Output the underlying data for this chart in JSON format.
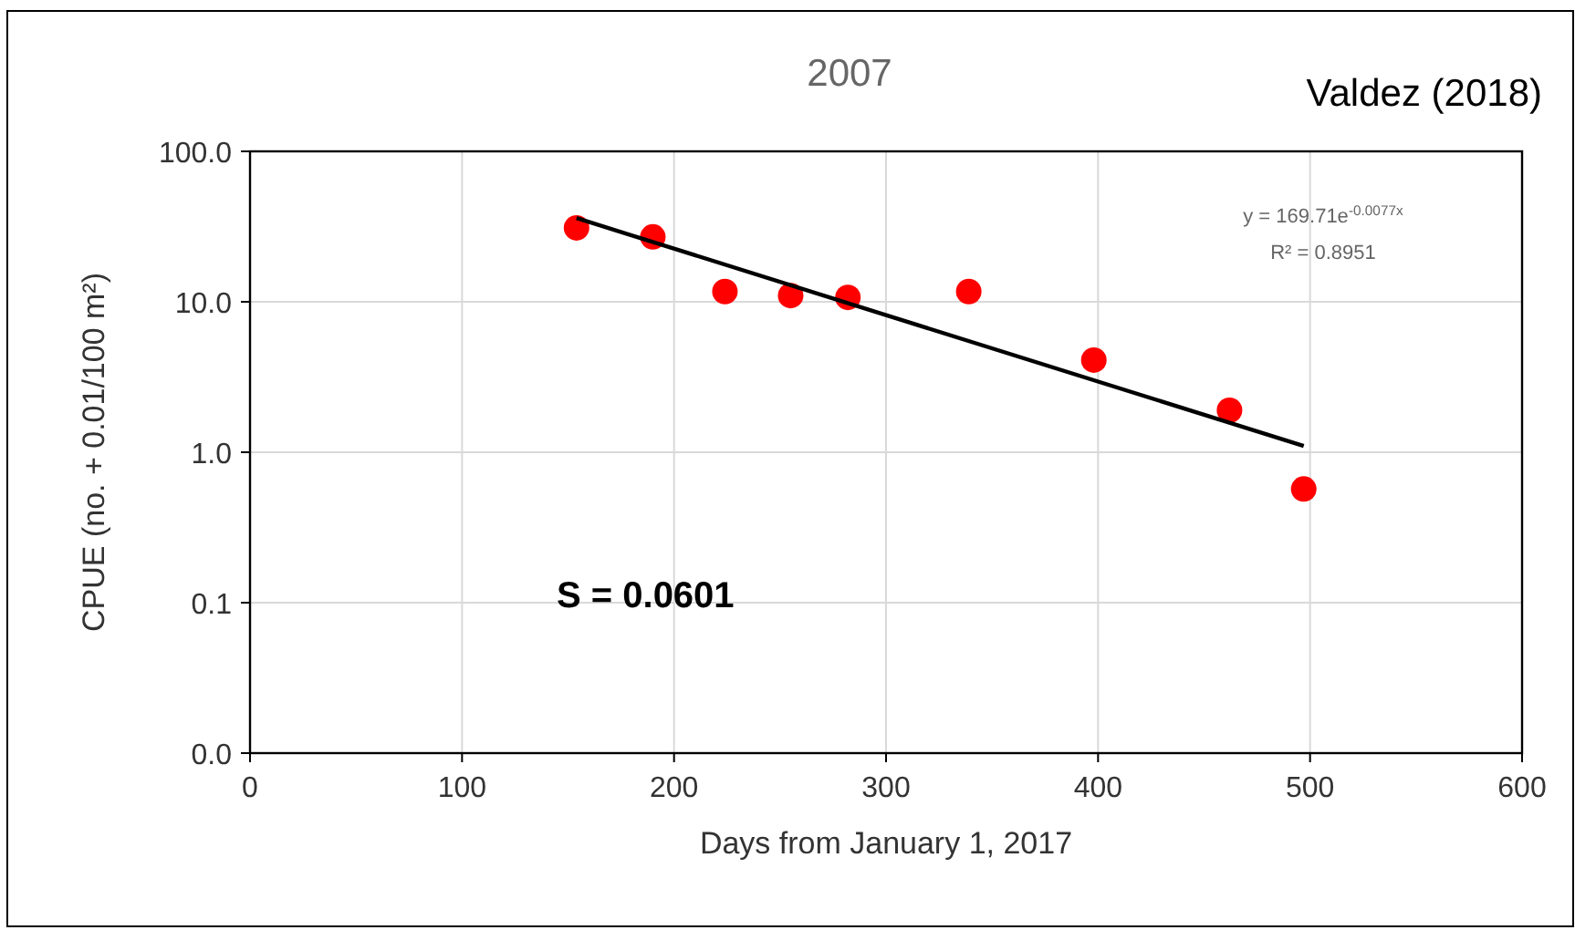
{
  "chart_data": {
    "type": "scatter",
    "title": "2007",
    "xlabel": "Days from January 1, 2017",
    "ylabel": "CPUE (no. + 0.01/100 m²)",
    "x": [
      154,
      190,
      224,
      255,
      282,
      339,
      398,
      462,
      497
    ],
    "series": [
      {
        "color": "#ff0000",
        "values": [
          31,
          27,
          11.7,
          11,
          10.7,
          11.7,
          4.1,
          1.9,
          0.57
        ]
      },
      {
        "type": "line",
        "marker": "none",
        "color": "#000000",
        "x": [
          154,
          497
        ],
        "values": [
          36,
          1.1
        ]
      }
    ],
    "xlim": [
      0,
      600
    ],
    "xticks": [
      0,
      100,
      200,
      300,
      400,
      500,
      600
    ],
    "ylim": [
      0.01,
      100
    ],
    "log": "y",
    "yticks": [
      {
        "value": 0.01,
        "label": "0.0"
      },
      {
        "value": 0.1,
        "label": "0.1"
      },
      {
        "value": 1,
        "label": "1.0"
      },
      {
        "value": 10,
        "label": "10.0"
      },
      {
        "value": 100,
        "label": "100.0"
      }
    ],
    "grid": true,
    "marker": "circle",
    "annotations": [
      "Valdez (2018)",
      "y = 169.71e$^{-0.0077x}$",
      "R² = 0.8951",
      "S = 0.0601"
    ]
  }
}
